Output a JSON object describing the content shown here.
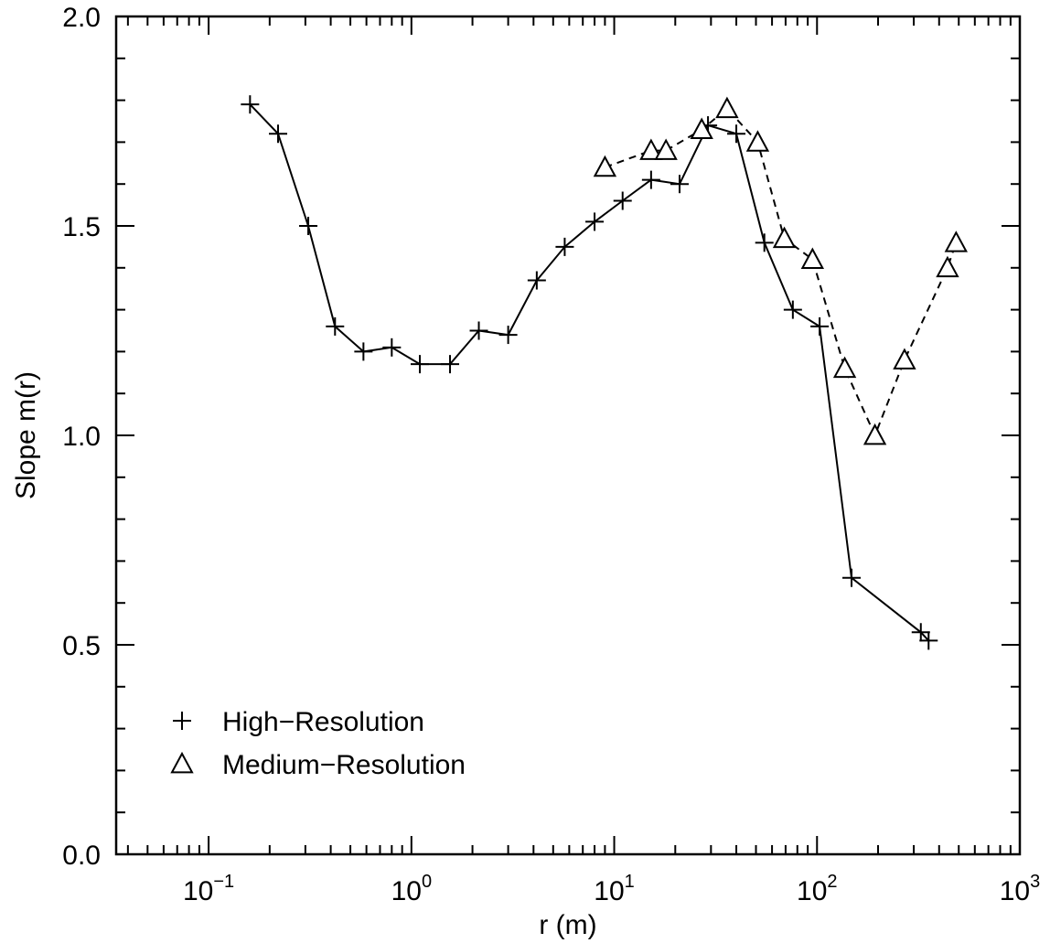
{
  "chart_data": {
    "type": "line",
    "title": "",
    "xlabel": "r (m)",
    "ylabel": "Slope m(r)",
    "x_scale": "log",
    "xlim": [
      0.035,
      1000
    ],
    "ylim": [
      0.0,
      2.0
    ],
    "grid": false,
    "legend_placement": "bottom-left",
    "x_ticks": [
      {
        "base": "10",
        "exp": "−1",
        "value": 0.1
      },
      {
        "base": "10",
        "exp": "0",
        "value": 1
      },
      {
        "base": "10",
        "exp": "1",
        "value": 10
      },
      {
        "base": "10",
        "exp": "2",
        "value": 100
      },
      {
        "base": "10",
        "exp": "3",
        "value": 1000
      }
    ],
    "y_ticks": [
      {
        "label": "0.0",
        "value": 0.0
      },
      {
        "label": "0.5",
        "value": 0.5
      },
      {
        "label": "1.0",
        "value": 1.0
      },
      {
        "label": "1.5",
        "value": 1.5
      },
      {
        "label": "2.0",
        "value": 2.0
      }
    ],
    "series": [
      {
        "name": "High−Resolution",
        "marker": "plus",
        "line_style": "solid",
        "color": "#000000",
        "points": [
          {
            "x": 0.16,
            "y": 1.79
          },
          {
            "x": 0.22,
            "y": 1.72
          },
          {
            "x": 0.31,
            "y": 1.5
          },
          {
            "x": 0.42,
            "y": 1.26
          },
          {
            "x": 0.58,
            "y": 1.2
          },
          {
            "x": 0.8,
            "y": 1.21
          },
          {
            "x": 1.1,
            "y": 1.17
          },
          {
            "x": 1.55,
            "y": 1.17
          },
          {
            "x": 2.15,
            "y": 1.25
          },
          {
            "x": 3.0,
            "y": 1.24
          },
          {
            "x": 4.15,
            "y": 1.37
          },
          {
            "x": 5.7,
            "y": 1.45
          },
          {
            "x": 8.0,
            "y": 1.51
          },
          {
            "x": 11.0,
            "y": 1.56
          },
          {
            "x": 15.2,
            "y": 1.61
          },
          {
            "x": 21.0,
            "y": 1.6
          },
          {
            "x": 29.0,
            "y": 1.74
          },
          {
            "x": 40.0,
            "y": 1.72
          },
          {
            "x": 55.0,
            "y": 1.46
          },
          {
            "x": 76.0,
            "y": 1.3
          },
          {
            "x": 103.0,
            "y": 1.26
          },
          {
            "x": 148.0,
            "y": 0.66
          },
          {
            "x": 325.0,
            "y": 0.53
          },
          {
            "x": 355.0,
            "y": 0.51
          }
        ]
      },
      {
        "name": "Medium−Resolution",
        "marker": "triangle",
        "line_style": "dashed",
        "color": "#000000",
        "points": [
          {
            "x": 9.0,
            "y": 1.64
          },
          {
            "x": 15.2,
            "y": 1.68
          },
          {
            "x": 18.0,
            "y": 1.68
          },
          {
            "x": 27.0,
            "y": 1.73
          },
          {
            "x": 36.0,
            "y": 1.78
          },
          {
            "x": 51.0,
            "y": 1.7
          },
          {
            "x": 69.0,
            "y": 1.47
          },
          {
            "x": 95.0,
            "y": 1.42
          },
          {
            "x": 137.0,
            "y": 1.16
          },
          {
            "x": 193.0,
            "y": 1.0
          },
          {
            "x": 270.0,
            "y": 1.18
          },
          {
            "x": 440.0,
            "y": 1.4
          },
          {
            "x": 485.0,
            "y": 1.46
          }
        ]
      }
    ]
  }
}
